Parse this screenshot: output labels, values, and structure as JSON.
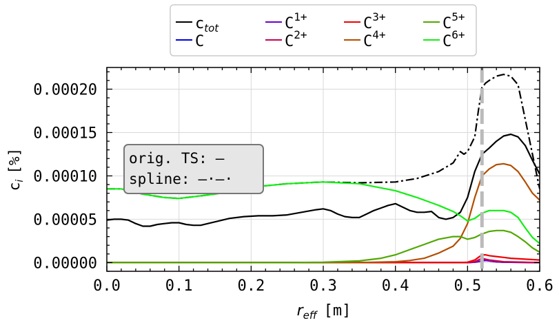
{
  "chart_data": {
    "type": "line",
    "xlabel_main": "r",
    "xlabel_sub": "eff",
    "xlabel_unit": "[m]",
    "ylabel_main": "c",
    "ylabel_sub": "i",
    "ylabel_unit": "[%]",
    "xlim": [
      0.0,
      0.6
    ],
    "ylim": [
      -1e-05,
      0.000225
    ],
    "x_ticks": [
      0.0,
      0.1,
      0.2,
      0.3,
      0.4,
      0.5,
      0.6
    ],
    "x_tick_labels": [
      "0.0",
      "0.1",
      "0.2",
      "0.3",
      "0.4",
      "0.5",
      "0.6"
    ],
    "y_ticks": [
      0.0,
      5e-05,
      0.0001,
      0.00015,
      0.0002
    ],
    "y_tick_labels": [
      "0.00000",
      "0.00005",
      "0.00010",
      "0.00015",
      "0.00020"
    ],
    "grid": true,
    "legend_placement": "top-center",
    "legend": [
      {
        "main": "c",
        "sub": "tot",
        "sup": "",
        "color": "#000000"
      },
      {
        "main": "C",
        "sub": "",
        "sup": "",
        "color": "#0000dd"
      },
      {
        "main": "C",
        "sub": "",
        "sup": "1+",
        "color": "#6a00c8"
      },
      {
        "main": "C",
        "sub": "",
        "sup": "2+",
        "color": "#c8004e"
      },
      {
        "main": "C",
        "sub": "",
        "sup": "3+",
        "color": "#ee0000"
      },
      {
        "main": "C",
        "sub": "",
        "sup": "4+",
        "color": "#b34d00"
      },
      {
        "main": "C",
        "sub": "",
        "sup": "5+",
        "color": "#4fa800"
      },
      {
        "main": "C",
        "sub": "",
        "sup": "6+",
        "color": "#11ee11"
      }
    ],
    "annotation": {
      "line1_label": "orig. TS:",
      "line1_marker": "—",
      "line2_label": "spline:",
      "line2_marker": "—·—·"
    },
    "vline": {
      "x": 0.52,
      "color": "#bbbbbb"
    },
    "series": [
      {
        "name": "c_tot spline",
        "color": "#000000",
        "dash": "dashdot",
        "x": [
          0.0,
          0.02,
          0.05,
          0.08,
          0.1,
          0.15,
          0.2,
          0.25,
          0.3,
          0.35,
          0.4,
          0.43,
          0.46,
          0.48,
          0.49,
          0.495,
          0.5,
          0.51,
          0.515,
          0.52,
          0.525,
          0.53,
          0.54,
          0.55,
          0.56,
          0.57,
          0.58,
          0.59,
          0.6
        ],
        "y": [
          8.5e-05,
          8.5e-05,
          7.9e-05,
          7.5e-05,
          7.4e-05,
          7.9e-05,
          8.7e-05,
          9.1e-05,
          9.3e-05,
          9.2e-05,
          9.3e-05,
          9.7e-05,
          0.000105,
          0.000115,
          0.000128,
          0.000125,
          0.000128,
          0.000145,
          0.000175,
          0.000202,
          0.000207,
          0.00021,
          0.000215,
          0.000217,
          0.000215,
          0.000205,
          0.000165,
          0.000125,
          8.5e-05
        ]
      },
      {
        "name": "c_tot",
        "color": "#000000",
        "dash": "solid",
        "x": [
          0.0,
          0.01,
          0.02,
          0.03,
          0.04,
          0.05,
          0.06,
          0.07,
          0.08,
          0.09,
          0.1,
          0.11,
          0.12,
          0.13,
          0.14,
          0.15,
          0.17,
          0.19,
          0.21,
          0.23,
          0.25,
          0.27,
          0.29,
          0.3,
          0.31,
          0.32,
          0.33,
          0.34,
          0.35,
          0.36,
          0.37,
          0.38,
          0.39,
          0.4,
          0.41,
          0.42,
          0.43,
          0.44,
          0.45,
          0.46,
          0.47,
          0.48,
          0.49,
          0.5,
          0.51,
          0.52,
          0.53,
          0.54,
          0.55,
          0.56,
          0.57,
          0.58,
          0.59,
          0.6
        ],
        "y": [
          4.9e-05,
          5e-05,
          5e-05,
          4.9e-05,
          4.5e-05,
          4.2e-05,
          4.2e-05,
          4.4e-05,
          4.5e-05,
          4.6e-05,
          4.6e-05,
          4.4e-05,
          4.3e-05,
          4.3e-05,
          4.5e-05,
          4.7e-05,
          5.1e-05,
          5.3e-05,
          5.4e-05,
          5.4e-05,
          5.5e-05,
          5.8e-05,
          6.1e-05,
          6.2e-05,
          6e-05,
          5.6e-05,
          5.3e-05,
          5.2e-05,
          5.2e-05,
          5.6e-05,
          6e-05,
          6.3e-05,
          6.6e-05,
          6.8e-05,
          6.4e-05,
          6e-05,
          5.8e-05,
          5.8e-05,
          5.9e-05,
          5.2e-05,
          5e-05,
          5.2e-05,
          5.8e-05,
          7.5e-05,
          0.000105,
          0.000125,
          0.000132,
          0.00014,
          0.000146,
          0.000148,
          0.000145,
          0.000135,
          0.000118,
          0.000102
        ]
      },
      {
        "name": "C",
        "color": "#0000dd",
        "dash": "solid",
        "x": [
          0.0,
          0.5,
          0.51,
          0.52,
          0.525,
          0.53,
          0.54,
          0.55,
          0.6
        ],
        "y": [
          0.0,
          0.0,
          5e-07,
          2e-06,
          3e-06,
          2e-06,
          1e-06,
          5e-07,
          0.0
        ]
      },
      {
        "name": "C1+",
        "color": "#6a00c8",
        "dash": "solid",
        "x": [
          0.0,
          0.5,
          0.51,
          0.52,
          0.525,
          0.53,
          0.54,
          0.55,
          0.6
        ],
        "y": [
          0.0,
          0.0,
          5e-07,
          2e-06,
          2.5e-06,
          2e-06,
          1e-06,
          5e-07,
          0.0
        ]
      },
      {
        "name": "C2+",
        "color": "#c8004e",
        "dash": "solid",
        "x": [
          0.0,
          0.5,
          0.51,
          0.515,
          0.52,
          0.525,
          0.53,
          0.54,
          0.55,
          0.6
        ],
        "y": [
          0.0,
          0.0,
          1e-06,
          3e-06,
          5e-06,
          4e-06,
          3e-06,
          2e-06,
          1e-06,
          0.0
        ]
      },
      {
        "name": "C3+",
        "color": "#ee0000",
        "dash": "solid",
        "x": [
          0.0,
          0.49,
          0.5,
          0.51,
          0.515,
          0.52,
          0.525,
          0.53,
          0.54,
          0.55,
          0.56,
          0.58,
          0.6
        ],
        "y": [
          0.0,
          0.0,
          5e-07,
          3e-06,
          6e-06,
          9e-06,
          9e-06,
          8e-06,
          7e-06,
          6e-06,
          5e-06,
          4e-06,
          3e-06
        ]
      },
      {
        "name": "C4+",
        "color": "#b34d00",
        "dash": "solid",
        "x": [
          0.0,
          0.35,
          0.4,
          0.42,
          0.44,
          0.46,
          0.48,
          0.49,
          0.5,
          0.51,
          0.52,
          0.53,
          0.54,
          0.55,
          0.56,
          0.57,
          0.58,
          0.59,
          0.6
        ],
        "y": [
          0.0,
          0.0,
          1e-06,
          2.5e-06,
          5e-06,
          1.1e-05,
          1.9e-05,
          2.8e-05,
          4.5e-05,
          7.5e-05,
          0.0001,
          0.000108,
          0.000113,
          0.000114,
          0.000112,
          0.000105,
          9.3e-05,
          8e-05,
          7.2e-05
        ]
      },
      {
        "name": "C5+",
        "color": "#4fa800",
        "dash": "solid",
        "x": [
          0.0,
          0.25,
          0.3,
          0.35,
          0.38,
          0.4,
          0.42,
          0.44,
          0.46,
          0.48,
          0.49,
          0.5,
          0.51,
          0.52,
          0.53,
          0.54,
          0.55,
          0.56,
          0.57,
          0.58,
          0.59,
          0.6
        ],
        "y": [
          0.0,
          0.0,
          5e-07,
          2e-06,
          5e-06,
          9e-06,
          1.5e-05,
          2.1e-05,
          2.7e-05,
          3e-05,
          3e-05,
          2.7e-05,
          2.9e-05,
          3.3e-05,
          3.6e-05,
          3.7e-05,
          3.7e-05,
          3.5e-05,
          3e-05,
          2.4e-05,
          1.7e-05,
          1.2e-05
        ]
      },
      {
        "name": "C6+",
        "color": "#11ee11",
        "dash": "solid",
        "x": [
          0.0,
          0.02,
          0.05,
          0.08,
          0.1,
          0.15,
          0.2,
          0.25,
          0.3,
          0.35,
          0.4,
          0.43,
          0.46,
          0.48,
          0.49,
          0.5,
          0.51,
          0.52,
          0.53,
          0.54,
          0.55,
          0.56,
          0.57,
          0.58,
          0.59,
          0.6
        ],
        "y": [
          8.5e-05,
          8.5e-05,
          7.9e-05,
          7.5e-05,
          7.4e-05,
          7.9e-05,
          8.7e-05,
          9.1e-05,
          9.3e-05,
          9.1e-05,
          8.3e-05,
          7.5e-05,
          6.6e-05,
          5.9e-05,
          5.4e-05,
          4.8e-05,
          5.1e-05,
          5.7e-05,
          6e-05,
          6e-05,
          6e-05,
          5.8e-05,
          5.2e-05,
          4e-05,
          2.9e-05,
          2.2e-05
        ]
      }
    ]
  }
}
